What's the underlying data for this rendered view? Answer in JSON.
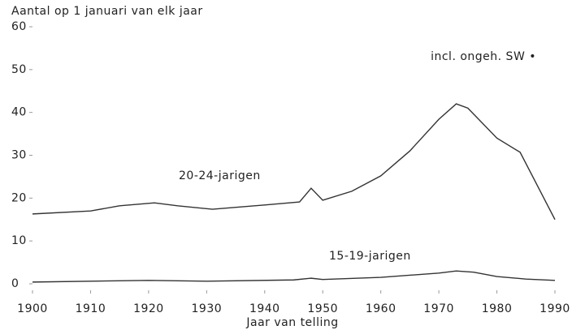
{
  "chart_data": {
    "type": "line",
    "y_label": "Aantal op 1 januari van elk jaar",
    "x_label": "Jaar van telling",
    "annotation": "incl. ongeh. SW •",
    "xlim": [
      1900,
      1990
    ],
    "xticks": [
      1900,
      1910,
      1920,
      1930,
      1940,
      1950,
      1960,
      1970,
      1980,
      1990
    ],
    "ylim": [
      0,
      60
    ],
    "yticks": [
      0,
      10,
      20,
      30,
      40,
      50,
      60
    ],
    "grid": false,
    "series": [
      {
        "name": "20-24-jarigen",
        "color": "#333333",
        "x": [
          1900,
          1910,
          1915,
          1921,
          1925,
          1931,
          1940,
          1946,
          1948,
          1950,
          1955,
          1960,
          1965,
          1970,
          1973,
          1975,
          1980,
          1984,
          1990
        ],
        "values": [
          16.3,
          17,
          18.2,
          18.9,
          18.2,
          17.4,
          18.4,
          19.1,
          22.3,
          19.5,
          21.6,
          25.2,
          31,
          38.4,
          42,
          41,
          34,
          30.7,
          15
        ]
      },
      {
        "name": "15-19-jarigen",
        "color": "#333333",
        "x": [
          1900,
          1920,
          1930,
          1945,
          1948,
          1950,
          1960,
          1970,
          1973,
          1976,
          1980,
          1985,
          1990
        ],
        "values": [
          0.4,
          0.8,
          0.6,
          0.9,
          1.3,
          1,
          1.5,
          2.5,
          3,
          2.7,
          1.7,
          1.1,
          0.8
        ]
      }
    ]
  }
}
